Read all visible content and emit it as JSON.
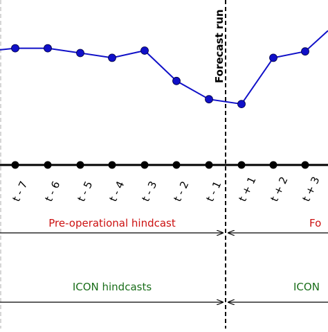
{
  "forecast_label": "Forecast run",
  "timeline": {
    "ticks": [
      "t - 7",
      "t - 6",
      "t - 5",
      "t - 4",
      "t - 3",
      "t - 2",
      "t - 1",
      "t + 1",
      "t + 2",
      "t + 3"
    ]
  },
  "series": {
    "color": "#1010c8",
    "values": [
      0.76,
      0.76,
      0.7,
      0.64,
      0.73,
      0.35,
      0.12,
      0.06,
      0.64,
      0.72
    ],
    "trailing_value": 0.98
  },
  "bands": {
    "preoperational": {
      "label": "Pre-operational hindcast",
      "right_label": "Fo",
      "color": "#cc1111"
    },
    "icon": {
      "label": "ICON hindcasts",
      "right_label": "ICON",
      "color": "#1a6e1a"
    }
  }
}
